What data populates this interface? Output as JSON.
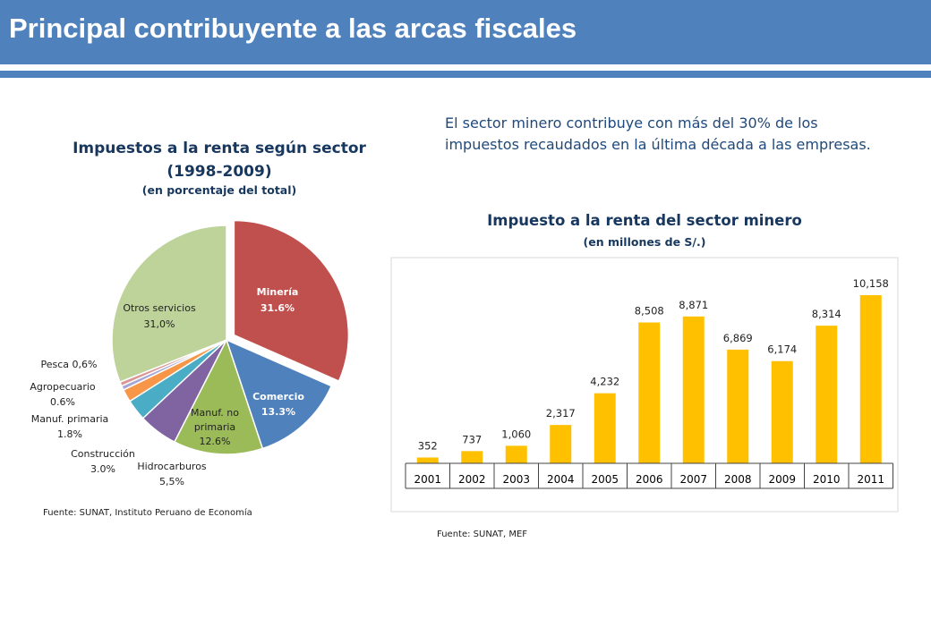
{
  "header": {
    "title": "Principal contribuyente a las arcas fiscales"
  },
  "intro_text": "El sector minero contribuye con más del 30% de los impuestos recaudados en la última década a las empresas.",
  "colors": {
    "header": "#4f81bd",
    "title_text": "#17375e",
    "intro_text": "#1f497d",
    "bar": "#ffc000"
  },
  "chart_data": [
    {
      "type": "pie",
      "title": "Impuestos a la renta según sector (1998-2009)",
      "title_line1": "Impuestos a la renta según sector",
      "title_line2": "(1998-2009)",
      "subtitle": "(en porcentaje del total)",
      "source": "Fuente: SUNAT, Instituto Peruano de Economía",
      "slices": [
        {
          "label": "Minería",
          "value_label": "31.6%",
          "value": 31.6,
          "color": "#c0504d",
          "exploded": true,
          "label_color": "#ffffff",
          "label_inside": true
        },
        {
          "label": "Comercio",
          "value_label": "13.3%",
          "value": 13.3,
          "color": "#4f81bd",
          "label_color": "#ffffff",
          "label_inside": true
        },
        {
          "label": "Manuf. no primaria",
          "value_label": "12.6%",
          "value": 12.6,
          "color": "#9bbb59",
          "label_color": "#222222",
          "label_inside": true
        },
        {
          "label": "Hidrocarburos",
          "value_label": "5,5%",
          "value": 5.5,
          "color": "#8064a2",
          "label_color": "#222222",
          "label_inside": false
        },
        {
          "label": "Construcción",
          "value_label": "3.0%",
          "value": 3.0,
          "color": "#4bacc6",
          "label_color": "#222222",
          "label_inside": false
        },
        {
          "label": "Manuf. primaria",
          "value_label": "1.8%",
          "value": 1.8,
          "color": "#f79646",
          "label_color": "#222222",
          "label_inside": false
        },
        {
          "label": "Agropecuario",
          "value_label": "0.6%",
          "value": 0.6,
          "color": "#a5a5d6",
          "label_color": "#222222",
          "label_inside": false
        },
        {
          "label": "Pesca",
          "value_label": "0,6%",
          "value": 0.6,
          "color": "#d99694",
          "label_color": "#222222",
          "label_inside": false
        },
        {
          "label": "Otros servicios",
          "value_label": "31,0%",
          "value": 31.0,
          "color": "#bdd39a",
          "label_color": "#222222",
          "label_inside": true
        }
      ]
    },
    {
      "type": "bar",
      "title": "Impuesto a la renta del sector minero",
      "subtitle": "(en millones de S/.)",
      "source": "Fuente: SUNAT, MEF",
      "categories": [
        "2001",
        "2002",
        "2003",
        "2004",
        "2005",
        "2006",
        "2007",
        "2008",
        "2009",
        "2010",
        "2011"
      ],
      "values": [
        352,
        737,
        1060,
        2317,
        4232,
        8508,
        8871,
        6869,
        6174,
        8314,
        10158
      ],
      "value_labels": [
        "352",
        "737",
        "1,060",
        "2,317",
        "4,232",
        "8,508",
        "8,871",
        "6,869",
        "6,174",
        "8,314",
        "10,158"
      ],
      "ylim": [
        0,
        10158
      ],
      "grid": false
    }
  ]
}
